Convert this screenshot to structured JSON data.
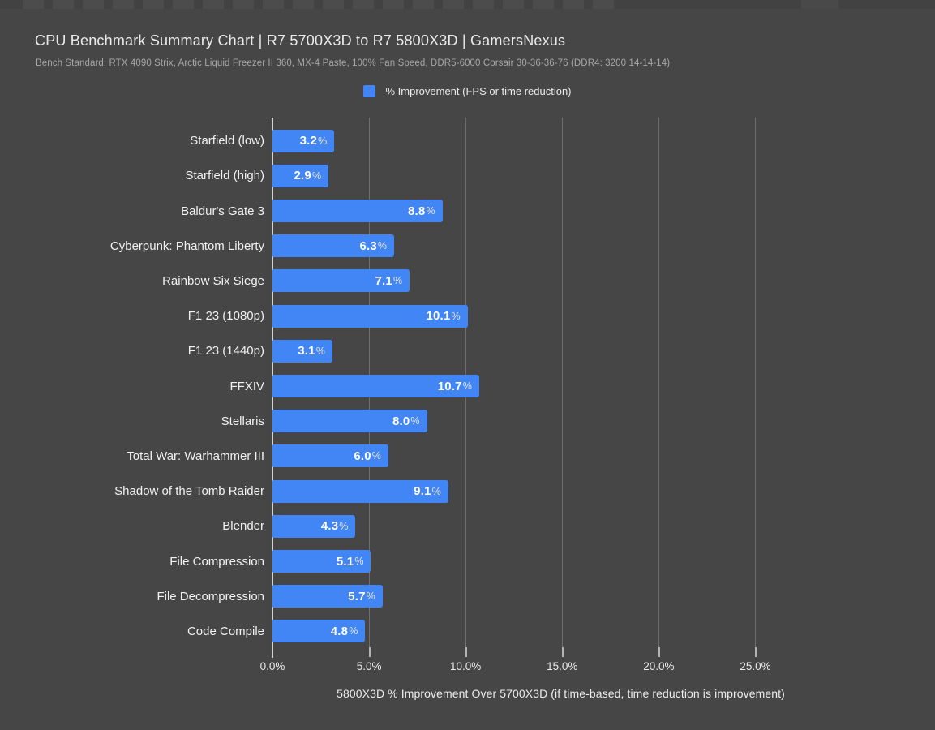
{
  "page": {
    "background": "#464646"
  },
  "header": {
    "title": "CPU Benchmark Summary Chart | R7 5700X3D to R7 5800X3D | GamersNexus",
    "subtitle": "Bench Standard: RTX 4090 Strix, Arctic Liquid Freezer II 360, MX-4 Paste, 100% Fan Speed, DDR5-6000 Corsair 30-36-36-76 (DDR4: 3200 14-14-14)"
  },
  "legend": {
    "label": "% Improvement (FPS or time reduction)",
    "swatch_color": "#4285f4"
  },
  "chart_data": {
    "type": "bar",
    "orientation": "horizontal",
    "title": "CPU Benchmark Summary Chart | R7 5700X3D to R7 5800X3D | GamersNexus",
    "subtitle": "Bench Standard: RTX 4090 Strix, Arctic Liquid Freezer II 360, MX-4 Paste, 100% Fan Speed, DDR5-6000 Corsair 30-36-36-76 (DDR4: 3200 14-14-14)",
    "categories": [
      "Starfield (low)",
      "Starfield (high)",
      "Baldur's Gate 3",
      "Cyberpunk: Phantom Liberty",
      "Rainbow Six Siege",
      "F1 23 (1080p)",
      "F1 23 (1440p)",
      "FFXIV",
      "Stellaris",
      "Total War: Warhammer III",
      "Shadow of the Tomb Raider",
      "Blender",
      "File Compression",
      "File Decompression",
      "Code Compile"
    ],
    "values": [
      3.2,
      2.9,
      8.8,
      6.3,
      7.1,
      10.1,
      3.1,
      10.7,
      8.0,
      6.0,
      9.1,
      4.3,
      5.1,
      5.7,
      4.8
    ],
    "value_labels": [
      "3.2%",
      "2.9%",
      "8.8%",
      "6.3%",
      "7.1%",
      "10.1%",
      "3.1%",
      "10.7%",
      "8.0%",
      "6.0%",
      "9.1%",
      "4.3%",
      "5.1%",
      "5.7%",
      "4.8%"
    ],
    "xlabel": "5800X3D % Improvement Over 5700X3D (if time-based, time reduction is improvement)",
    "x_ticks": {
      "labels": [
        "0.0%",
        "5.0%",
        "10.0%",
        "15.0%",
        "20.0%",
        "25.0%"
      ],
      "values": [
        0,
        5,
        10,
        15,
        20,
        25
      ]
    },
    "xlim": [
      0,
      27.5
    ],
    "grid": true,
    "legend_entries": [
      "% Improvement (FPS or time reduction)"
    ],
    "legend_position": "top-center",
    "bar_color": "#4285f4",
    "background_color": "#464646"
  }
}
